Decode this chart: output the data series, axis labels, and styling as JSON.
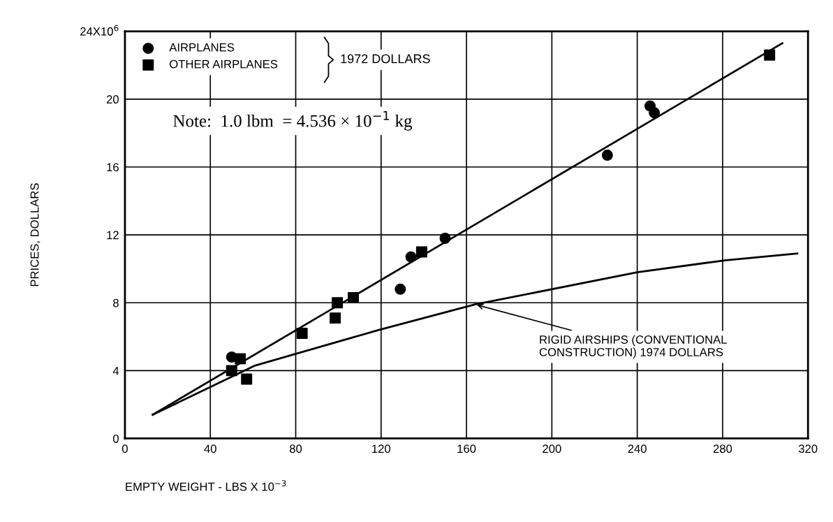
{
  "chart_data": {
    "type": "scatter",
    "xlabel": "EMPTY WEIGHT - LBS X 10$^{−3}$",
    "ylabel": "PRICES, DOLLARS",
    "xlim": [
      0,
      320
    ],
    "xticks": [
      0,
      40,
      80,
      120,
      160,
      200,
      240,
      280,
      320
    ],
    "ylim": [
      0,
      24
    ],
    "yticks": [
      0,
      4,
      8,
      12,
      16,
      20,
      {
        "value": 24,
        "label": "24X10$^{6}$"
      }
    ],
    "grid": true,
    "legend": "top left",
    "series": [
      {
        "name": "AIRPLANES",
        "marker": "circle",
        "color": "#000000",
        "x": [
          50,
          129,
          134,
          150,
          226,
          246,
          248
        ],
        "values": [
          4.8,
          8.8,
          10.7,
          11.8,
          16.7,
          19.6,
          19.2
        ]
      },
      {
        "name": "OTHER AIRPLANES",
        "marker": "square",
        "color": "#000000",
        "x": [
          54,
          50,
          57,
          83,
          98.5,
          99.5,
          107,
          139,
          302
        ],
        "values": [
          4.7,
          4.0,
          3.5,
          6.2,
          7.1,
          8.0,
          8.3,
          11.0,
          22.6
        ]
      },
      {
        "type": "line",
        "marker": "none",
        "color": "#000000",
        "x": [
          13,
          308
        ],
        "values": [
          1.4,
          23.3
        ]
      },
      {
        "type": "line",
        "marker": "none",
        "color": "#000000",
        "x": [
          13,
          61,
          119,
          164,
          240,
          281,
          315
        ],
        "values": [
          1.4,
          4.3,
          6.4,
          7.9,
          9.8,
          10.5,
          10.9
        ]
      }
    ],
    "annotations": [
      "1972 DOLLARS",
      "Note:  1.0 lbm  = 4.536 × 10$^{−1}$ kg",
      {
        "text": "RIGID AIRSHIPS (CONVENTIONAL\nCONSTRUCTION) 1974 DOLLARS",
        "x": 164,
        "y": 7.9
      }
    ]
  }
}
